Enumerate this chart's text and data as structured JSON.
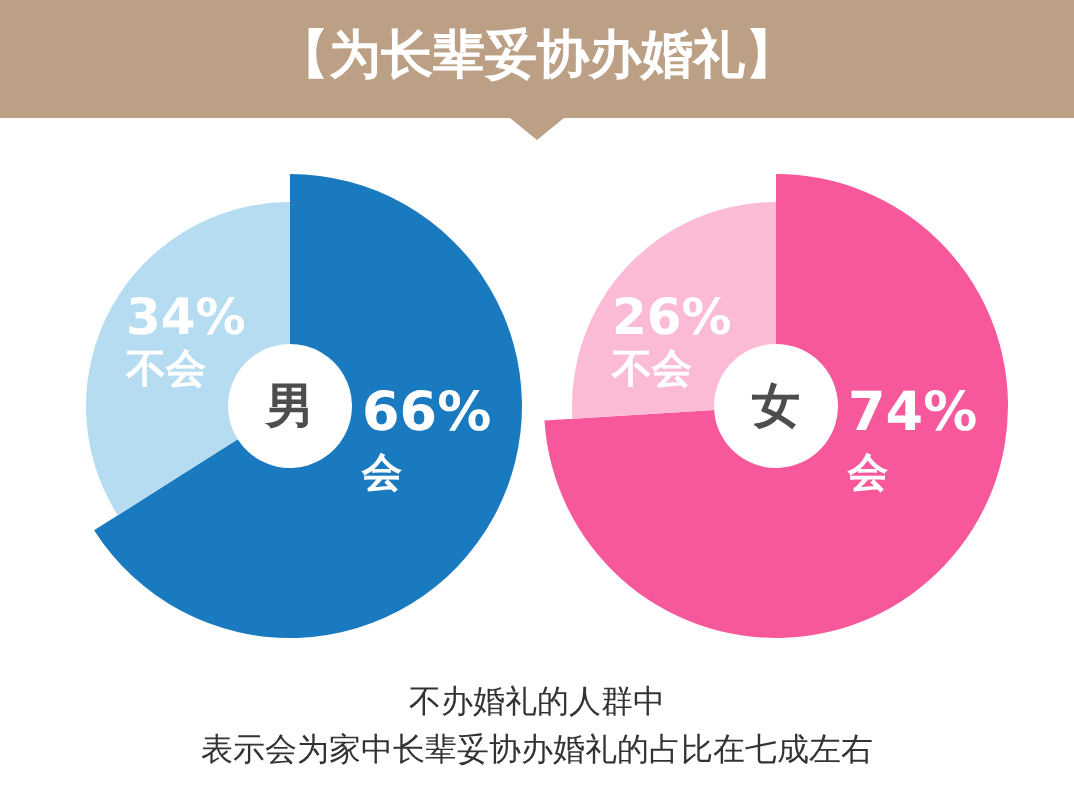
{
  "chart_data": [
    {
      "type": "donut",
      "title": "【为长辈妥协办婚礼】",
      "categories": [
        "会",
        "不会"
      ],
      "values": [
        66,
        34
      ],
      "colors": [
        "#1a7ac0",
        "#b6dcf1"
      ],
      "value_labels": [
        "66%",
        "34%"
      ],
      "annotations": [
        "男"
      ]
    },
    {
      "type": "donut",
      "categories": [
        "会",
        "不会"
      ],
      "values": [
        74,
        26
      ],
      "colors": [
        "#f7589b",
        "#fbbbd7"
      ],
      "value_labels": [
        "74%",
        "26%"
      ],
      "annotations": [
        "女",
        "不办婚礼的人群中",
        "表示会为家中长辈妥协办婚礼的占比在七成左右"
      ]
    }
  ]
}
